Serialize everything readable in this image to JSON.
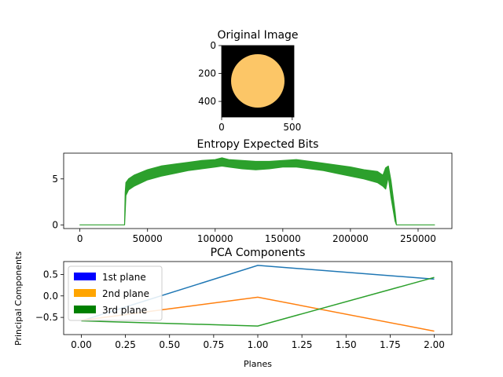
{
  "chart_data": [
    {
      "type": "image",
      "title": "Original Image",
      "xticks": [
        0,
        500
      ],
      "yticks": [
        0,
        200,
        400
      ],
      "xlim": [
        0,
        512
      ],
      "ylim": [
        512,
        0
      ],
      "colors": {
        "background": "#000000",
        "disk": "#fcc667"
      }
    },
    {
      "type": "line",
      "title": "Entropy Expected Bits",
      "xlabel": "",
      "ylabel": "",
      "xlim": [
        -12000,
        275000
      ],
      "ylim": [
        -0.4,
        7.8
      ],
      "xticks": [
        0,
        50000,
        100000,
        150000,
        200000,
        250000
      ],
      "yticks": [
        0,
        5
      ],
      "series": [
        {
          "color": "#2ca02c",
          "x": [
            0,
            33000,
            33500,
            34000,
            36000,
            40000,
            50000,
            60000,
            70000,
            80000,
            90000,
            100000,
            105000,
            110000,
            120000,
            130000,
            140000,
            150000,
            160000,
            170000,
            180000,
            190000,
            200000,
            210000,
            220000,
            224000,
            226000,
            228000,
            230000,
            233000,
            234000,
            262144
          ],
          "low": [
            0,
            0,
            1.5,
            3.2,
            3.8,
            4.2,
            4.9,
            5.3,
            5.6,
            5.9,
            6.1,
            6.3,
            6.4,
            6.3,
            6.1,
            6.0,
            6.1,
            6.3,
            6.3,
            6.1,
            5.9,
            5.6,
            5.3,
            5.0,
            4.6,
            4.2,
            3.9,
            5.2,
            3.0,
            0.4,
            0,
            0
          ],
          "high": [
            0,
            0,
            3.5,
            4.6,
            5.0,
            5.4,
            6.0,
            6.4,
            6.6,
            6.8,
            7.0,
            7.1,
            7.3,
            7.1,
            7.0,
            6.9,
            6.9,
            7.0,
            7.1,
            6.9,
            6.7,
            6.5,
            6.3,
            6.0,
            5.8,
            5.4,
            6.2,
            6.4,
            4.8,
            1.4,
            0,
            0
          ]
        }
      ]
    },
    {
      "type": "line",
      "title": "PCA Components",
      "xlabel": "Planes",
      "ylabel": "Principal Components",
      "xlim": [
        -0.1,
        2.1
      ],
      "ylim": [
        -0.9,
        0.8
      ],
      "xticks": [
        0.0,
        0.25,
        0.5,
        0.75,
        1.0,
        1.25,
        1.5,
        1.75,
        2.0
      ],
      "xticklabels": [
        "0.00",
        "0.25",
        "0.50",
        "0.75",
        "1.00",
        "1.25",
        "1.50",
        "1.75",
        "2.00"
      ],
      "yticks": [
        0.5,
        0.0,
        -0.5
      ],
      "yticklabels": [
        "0.5",
        "0.0",
        "−0.5"
      ],
      "x": [
        0,
        1,
        2
      ],
      "series": [
        {
          "color": "#1f77b4",
          "values": [
            -0.58,
            0.71,
            0.39
          ]
        },
        {
          "color": "#ff7f0e",
          "values": [
            -0.57,
            -0.03,
            -0.82
          ]
        },
        {
          "color": "#2ca02c",
          "values": [
            -0.58,
            -0.7,
            0.43
          ]
        }
      ],
      "legend": {
        "placement": "upper-left",
        "entries": [
          {
            "label": "1st plane",
            "color": "#0000ff"
          },
          {
            "label": "2nd plane",
            "color": "#ffa500"
          },
          {
            "label": "3rd plane",
            "color": "#008000"
          }
        ]
      }
    }
  ]
}
